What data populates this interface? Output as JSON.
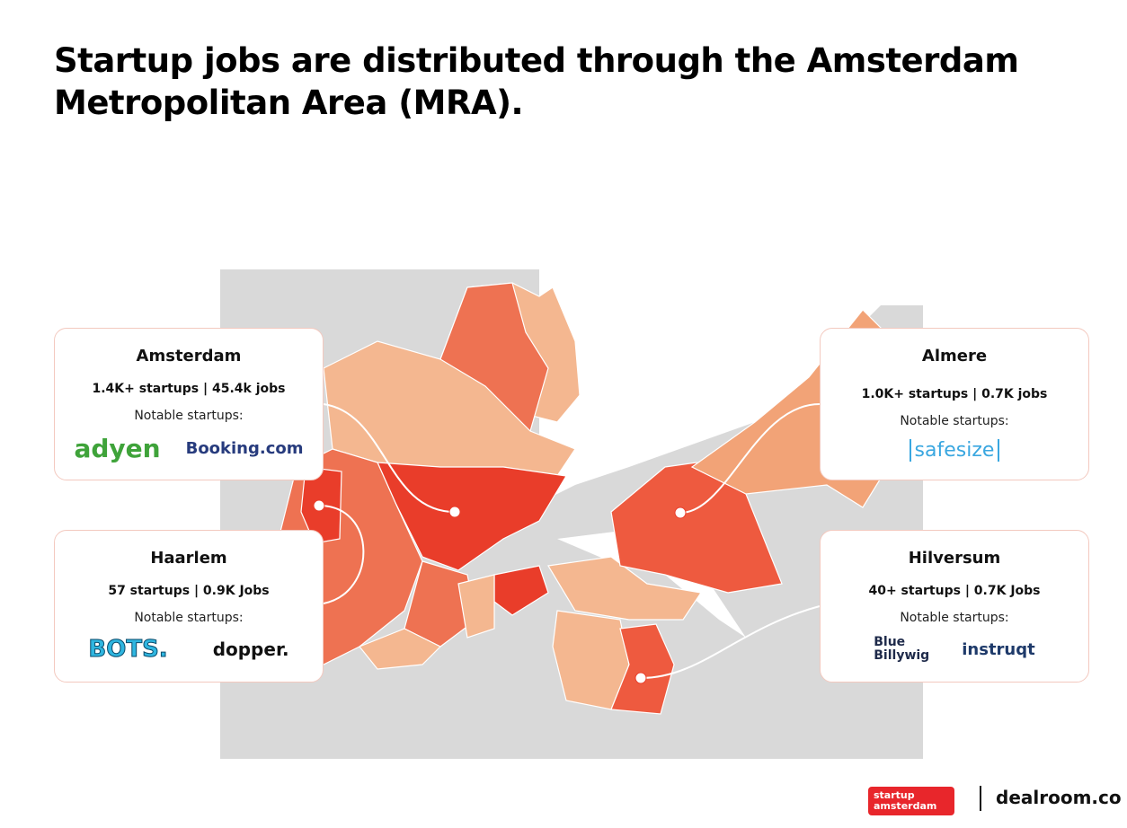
{
  "title": "Startup jobs are distributed through the Amsterdam Metropolitan Area (MRA).",
  "cards": [
    {
      "city": "Amsterdam",
      "stats": "1.4K+ startups | 45.4k jobs",
      "notable": "Notable startups:",
      "logos": [
        "adyen",
        "Booking.com"
      ]
    },
    {
      "city": "Haarlem",
      "stats": "57 startups | 0.9K Jobs",
      "notable": "Notable startups:",
      "logos": [
        "BOTS.",
        "dopper."
      ]
    },
    {
      "city": "Almere",
      "stats": "1.0K+ startups | 0.7K jobs",
      "notable": "Notable startups:",
      "logos": [
        "safesize"
      ]
    },
    {
      "city": "Hilversum",
      "stats": "40+ startups | 0.7K Jobs",
      "notable": "Notable startups:",
      "logos": [
        "Blue Billywig",
        "instruqt"
      ]
    }
  ],
  "footer": {
    "logos": [
      "startup amsterdam",
      "dealroom.co"
    ]
  }
}
